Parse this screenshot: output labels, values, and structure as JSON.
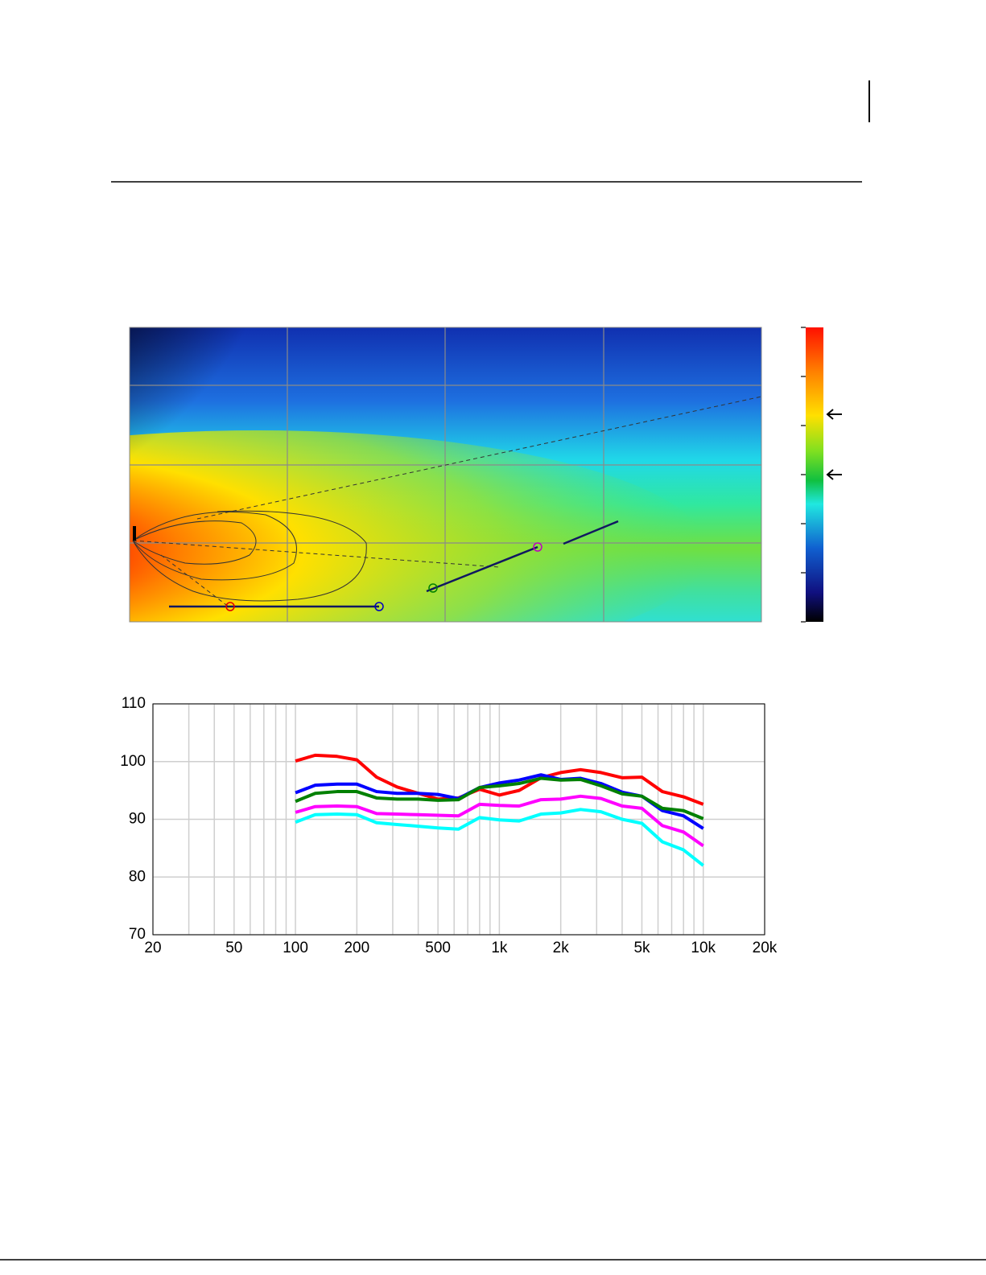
{
  "chart_data": {
    "type": "line",
    "x": [
      100,
      125,
      160,
      200,
      250,
      315,
      400,
      500,
      630,
      800,
      1000,
      1250,
      1600,
      2000,
      2500,
      3150,
      4000,
      5000,
      6300,
      8000,
      10000
    ],
    "series": [
      {
        "color": "#ff0000",
        "values": [
          100.1,
          101.1,
          100.9,
          100.3,
          97.3,
          95.6,
          94.5,
          93.5,
          93.7,
          95.2,
          94.2,
          95.0,
          97.2,
          98.1,
          98.6,
          98.1,
          97.2,
          97.3,
          94.8,
          93.9,
          92.6
        ]
      },
      {
        "color": "#0000ff",
        "values": [
          94.6,
          95.9,
          96.1,
          96.1,
          94.8,
          94.5,
          94.5,
          94.3,
          93.6,
          95.5,
          96.3,
          96.8,
          97.7,
          96.9,
          97.1,
          96.2,
          94.7,
          94.0,
          91.5,
          90.6,
          88.4
        ]
      },
      {
        "color": "#008000",
        "values": [
          93.1,
          94.5,
          94.8,
          94.8,
          93.7,
          93.5,
          93.5,
          93.3,
          93.4,
          95.5,
          95.8,
          96.2,
          97.1,
          96.8,
          96.9,
          95.8,
          94.4,
          94.0,
          91.9,
          91.5,
          90.1
        ]
      },
      {
        "color": "#ff00ff",
        "values": [
          91.2,
          92.2,
          92.3,
          92.2,
          91.0,
          90.9,
          90.8,
          90.7,
          90.6,
          92.6,
          92.4,
          92.3,
          93.4,
          93.5,
          94.0,
          93.6,
          92.3,
          91.9,
          88.9,
          87.8,
          85.4
        ]
      },
      {
        "color": "#00ffff",
        "values": [
          89.5,
          90.8,
          90.9,
          90.8,
          89.4,
          89.1,
          88.8,
          88.5,
          88.3,
          90.3,
          89.9,
          89.7,
          90.9,
          91.1,
          91.7,
          91.3,
          90.0,
          89.3,
          86.1,
          84.7,
          82.0
        ]
      }
    ],
    "xscale": "log",
    "xlim": [
      20,
      20000
    ],
    "xticks": [
      20,
      50,
      100,
      200,
      500,
      {
        "value": 1000,
        "label": "1k"
      },
      {
        "value": 2000,
        "label": "2k"
      },
      {
        "value": 5000,
        "label": "5k"
      },
      {
        "value": 10000,
        "label": "10k"
      },
      {
        "value": 20000,
        "label": "20k"
      }
    ],
    "xminorticks": [
      30,
      40,
      60,
      70,
      80,
      90,
      300,
      400,
      600,
      700,
      800,
      900,
      3000,
      4000,
      6000,
      7000,
      8000,
      9000
    ],
    "ylim": [
      70,
      110
    ],
    "yticks": [
      70,
      80,
      90,
      100,
      110
    ],
    "grid": true
  }
}
